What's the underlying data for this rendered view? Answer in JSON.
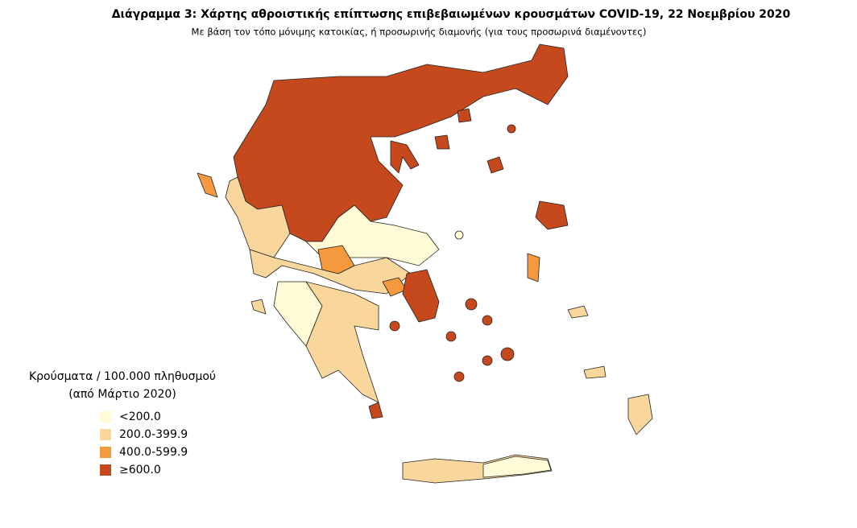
{
  "header": {
    "title": "Διάγραμμα 3: Χάρτης αθροιστικής επίπτωσης επιβεβαιωμένων κρουσμάτων COVID-19, 22 Νοεμβρίου 2020",
    "subtitle": "Με βάση τον τόπο μόνιμης κατοικίας, ή προσωρινής διαμονής (για τους προσωρινά διαμένοντες)"
  },
  "legend": {
    "title": [
      "Κρούσματα / 100.000 πληθυσμού",
      "(από Μάρτιο 2020)"
    ],
    "items": [
      {
        "label": "<200.0",
        "color": "#fefbd6"
      },
      {
        "label": "200.0-399.9",
        "color": "#f9d69b"
      },
      {
        "label": "400.0-599.9",
        "color": "#f5993f"
      },
      {
        "label": "≥600.0",
        "color": "#c5491c"
      }
    ]
  }
}
